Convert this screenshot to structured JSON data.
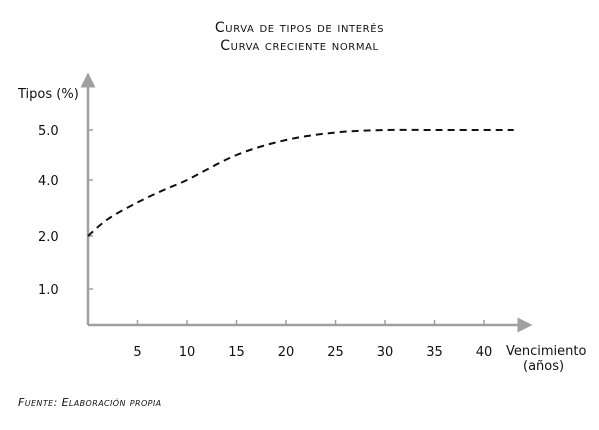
{
  "titles": {
    "line1": "Curva de tipos de interés",
    "line2": "Curva creciente normal"
  },
  "source": "Fuente: Elaboración propia",
  "chart_data": {
    "type": "line",
    "ylabel": "Tipos (%)",
    "xlabel_line1": "Vencimiento",
    "xlabel_line2": "(años)",
    "x_ticks": [
      5,
      10,
      15,
      20,
      25,
      30,
      35,
      40
    ],
    "y_ticks": [
      {
        "label": "1.0",
        "value": 1.0
      },
      {
        "label": "2.0",
        "value": 2.0
      },
      {
        "label": "4.0",
        "value": 4.0
      },
      {
        "label": "5.0",
        "value": 5.0
      }
    ],
    "series": [
      {
        "style": "dashed",
        "color": "#111111",
        "x": [
          0,
          2,
          5,
          8,
          10,
          15,
          20,
          25,
          30,
          35,
          40,
          43
        ],
        "y": [
          2.0,
          2.6,
          3.2,
          3.7,
          4.0,
          4.5,
          4.8,
          4.95,
          5.02,
          5.05,
          5.05,
          5.05
        ]
      }
    ]
  }
}
